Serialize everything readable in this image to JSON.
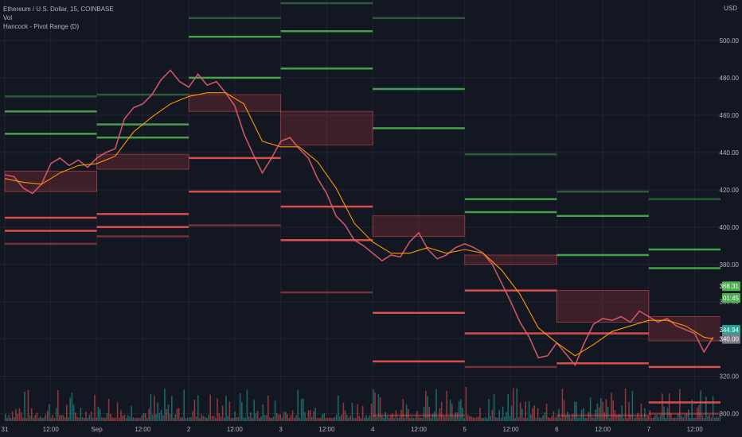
{
  "header": {
    "symbol_line": "Ethereum / U.S. Dollar, 15, COINBASE",
    "vol_label": "Vol",
    "indicator_label": "Hancock - Pivot Range (D)",
    "currency": "USD"
  },
  "chart_data": {
    "type": "line",
    "title": "Ethereum / U.S. Dollar, 15, COINBASE",
    "ylim": [
      296,
      520
    ],
    "y_ticks": [
      300,
      320,
      340,
      360,
      380,
      400,
      420,
      440,
      460,
      480,
      500
    ],
    "y_tick_labels": [
      "300.00",
      "320.00",
      "340.00",
      "360.00",
      "380.00",
      "400.00",
      "420.00",
      "440.00",
      "460.00",
      "480.00",
      "500.00"
    ],
    "x_ticks": [
      {
        "t": 0,
        "label": "31"
      },
      {
        "t": 0.5,
        "label": "12:00"
      },
      {
        "t": 1,
        "label": "Sep"
      },
      {
        "t": 1.5,
        "label": "12:00"
      },
      {
        "t": 2,
        "label": "2"
      },
      {
        "t": 2.5,
        "label": "12:00"
      },
      {
        "t": 3,
        "label": "3"
      },
      {
        "t": 3.5,
        "label": "12:00"
      },
      {
        "t": 4,
        "label": "4"
      },
      {
        "t": 4.5,
        "label": "12:00"
      },
      {
        "t": 5,
        "label": "5"
      },
      {
        "t": 5.5,
        "label": "12:00"
      },
      {
        "t": 6,
        "label": "6"
      },
      {
        "t": 6.5,
        "label": "12:00"
      },
      {
        "t": 7,
        "label": "7"
      },
      {
        "t": 7.5,
        "label": "12:00"
      }
    ],
    "price_series": [
      [
        0.0,
        428
      ],
      [
        0.1,
        427
      ],
      [
        0.2,
        421
      ],
      [
        0.3,
        418
      ],
      [
        0.4,
        423
      ],
      [
        0.5,
        434
      ],
      [
        0.6,
        437
      ],
      [
        0.7,
        433
      ],
      [
        0.8,
        436
      ],
      [
        0.9,
        432
      ],
      [
        1.0,
        437
      ],
      [
        1.1,
        440
      ],
      [
        1.2,
        442
      ],
      [
        1.3,
        458
      ],
      [
        1.4,
        464
      ],
      [
        1.5,
        466
      ],
      [
        1.6,
        471
      ],
      [
        1.7,
        479
      ],
      [
        1.8,
        484
      ],
      [
        1.9,
        478
      ],
      [
        2.0,
        475
      ],
      [
        2.1,
        482
      ],
      [
        2.2,
        476
      ],
      [
        2.3,
        478
      ],
      [
        2.4,
        472
      ],
      [
        2.5,
        465
      ],
      [
        2.6,
        450
      ],
      [
        2.7,
        439
      ],
      [
        2.8,
        429
      ],
      [
        2.9,
        437
      ],
      [
        3.0,
        446
      ],
      [
        3.1,
        448
      ],
      [
        3.2,
        442
      ],
      [
        3.3,
        437
      ],
      [
        3.4,
        426
      ],
      [
        3.5,
        418
      ],
      [
        3.6,
        406
      ],
      [
        3.7,
        401
      ],
      [
        3.8,
        393
      ],
      [
        3.9,
        390
      ],
      [
        4.0,
        386
      ],
      [
        4.1,
        382
      ],
      [
        4.2,
        385
      ],
      [
        4.3,
        384
      ],
      [
        4.4,
        392
      ],
      [
        4.5,
        397
      ],
      [
        4.6,
        388
      ],
      [
        4.7,
        383
      ],
      [
        4.8,
        385
      ],
      [
        4.9,
        389
      ],
      [
        5.0,
        391
      ],
      [
        5.1,
        389
      ],
      [
        5.2,
        386
      ],
      [
        5.3,
        380
      ],
      [
        5.4,
        370
      ],
      [
        5.5,
        360
      ],
      [
        5.6,
        349
      ],
      [
        5.7,
        341
      ],
      [
        5.8,
        330
      ],
      [
        5.9,
        331
      ],
      [
        6.0,
        338
      ],
      [
        6.1,
        332
      ],
      [
        6.2,
        326
      ],
      [
        6.3,
        338
      ],
      [
        6.4,
        348
      ],
      [
        6.5,
        351
      ],
      [
        6.6,
        350
      ],
      [
        6.7,
        352
      ],
      [
        6.8,
        349
      ],
      [
        6.9,
        355
      ],
      [
        7.0,
        352
      ],
      [
        7.1,
        349
      ],
      [
        7.2,
        351
      ],
      [
        7.3,
        347
      ],
      [
        7.4,
        345
      ],
      [
        7.5,
        343
      ],
      [
        7.6,
        333
      ],
      [
        7.7,
        341
      ]
    ],
    "ma_series": [
      [
        0.0,
        426
      ],
      [
        0.2,
        424
      ],
      [
        0.4,
        423
      ],
      [
        0.6,
        429
      ],
      [
        0.8,
        433
      ],
      [
        1.0,
        434
      ],
      [
        1.2,
        438
      ],
      [
        1.4,
        451
      ],
      [
        1.6,
        459
      ],
      [
        1.8,
        466
      ],
      [
        2.0,
        470
      ],
      [
        2.2,
        472
      ],
      [
        2.4,
        472
      ],
      [
        2.6,
        466
      ],
      [
        2.8,
        446
      ],
      [
        3.0,
        443
      ],
      [
        3.2,
        443
      ],
      [
        3.4,
        435
      ],
      [
        3.6,
        421
      ],
      [
        3.8,
        402
      ],
      [
        4.0,
        392
      ],
      [
        4.2,
        386
      ],
      [
        4.4,
        386
      ],
      [
        4.6,
        389
      ],
      [
        4.8,
        386
      ],
      [
        5.0,
        388
      ],
      [
        5.2,
        386
      ],
      [
        5.4,
        377
      ],
      [
        5.6,
        364
      ],
      [
        5.8,
        346
      ],
      [
        6.0,
        338
      ],
      [
        6.2,
        331
      ],
      [
        6.4,
        337
      ],
      [
        6.6,
        344
      ],
      [
        6.8,
        347
      ],
      [
        7.0,
        350
      ],
      [
        7.2,
        350
      ],
      [
        7.4,
        347
      ],
      [
        7.6,
        341
      ],
      [
        7.7,
        340
      ]
    ],
    "pivot_levels": [
      {
        "day": 0,
        "r2": 462,
        "r1": 450,
        "r3": 470,
        "cpr_top": 430,
        "cpr_bottom": 419,
        "s1": 405,
        "s2": 398,
        "s3": 391
      },
      {
        "day": 1,
        "r2": 455,
        "r1": 448,
        "r3": 471,
        "cpr_top": 439,
        "cpr_bottom": 431,
        "s1": 407,
        "s2": 400,
        "s3": 395
      },
      {
        "day": 2,
        "r2": 502,
        "r1": 480,
        "r3": 512,
        "cpr_top": 471,
        "cpr_bottom": 462,
        "s1": 437,
        "s2": 419,
        "s3": 401
      },
      {
        "day": 3,
        "r2": 505,
        "r1": 485,
        "r3": 520,
        "cpr_top": 462,
        "cpr_bottom": 444,
        "s1": 411,
        "s2": 393,
        "s3": 365
      },
      {
        "day": 4,
        "r2": 474,
        "r1": 453,
        "r3": 512,
        "cpr_top": 406,
        "cpr_bottom": 395,
        "s1": 354,
        "s2": 328,
        "s3": 299
      },
      {
        "day": 5,
        "r2": 415,
        "r1": 408,
        "r3": 439,
        "cpr_top": 385,
        "cpr_bottom": 380,
        "s1": 366,
        "s2": 343,
        "s3": 325
      },
      {
        "day": 6,
        "r2": 406,
        "r1": 385,
        "r3": 419,
        "cpr_top": 366,
        "cpr_bottom": 349,
        "s1": 343,
        "s2": 327,
        "s3": 299
      },
      {
        "day": 7,
        "r2": 388,
        "r1": 378,
        "r3": 415,
        "cpr_top": 352,
        "cpr_bottom": 339,
        "s1": 325,
        "s2": 306,
        "s3": 300
      }
    ],
    "price_labels": [
      {
        "text": "368.31",
        "value": 368.31,
        "color": "#4caf50"
      },
      {
        "text": "01:45",
        "value": 362,
        "color": "#4caf50"
      },
      {
        "text": "344.94",
        "value": 344.94,
        "color": "#26a69a"
      },
      {
        "text": "340.00",
        "value": 340,
        "color": "#787b86"
      }
    ],
    "colors": {
      "background": "#131722",
      "grid": "#1f2430",
      "support": "#f05350",
      "resistance": "#4caf50",
      "price_up": "#e88ec1",
      "price_down": "#e05c6a",
      "ma": "#ff9800",
      "cpr_fill": "#8b2f3a",
      "vol_up": "#26a69a",
      "vol_down": "#ef5350"
    }
  }
}
